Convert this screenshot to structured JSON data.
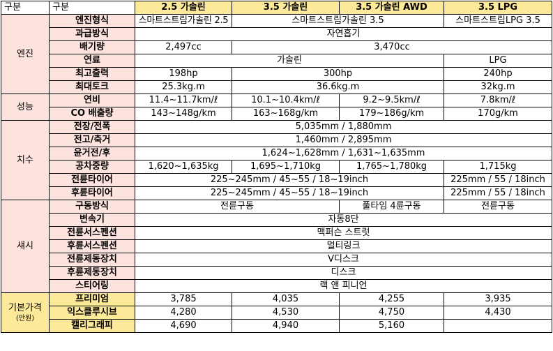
{
  "header": {
    "col1": "구분",
    "col2": "구분",
    "models": [
      "2.5 가솔린",
      "3.5 가솔린",
      "3.5 가솔린 AWD",
      "3.5 LPG"
    ]
  },
  "groups": {
    "engine": "엔진",
    "performance": "성능",
    "dimensions": "치수",
    "chassis": "섀시",
    "price": "기본가격",
    "price_unit": "(만원)"
  },
  "engine": {
    "type": {
      "label": "엔진형식",
      "v1": "스마트스트림가솔린 2.5",
      "v23": "스마트스트림가솔린 3.5",
      "v4": "스마트스트림LPG 3.5"
    },
    "intake": {
      "label": "과급방식",
      "all": "자연흡기"
    },
    "displacement": {
      "label": "배기량",
      "v1": "2,497cc",
      "v234": "3,470cc"
    },
    "fuel": {
      "label": "연료",
      "v123": "가솔린",
      "v4": "LPG"
    },
    "power": {
      "label": "최고출력",
      "v1": "198hp",
      "v23": "300hp",
      "v4": "240hp"
    },
    "torque": {
      "label": "최대토크",
      "v1": "25.3kg.m",
      "v23": "36.6kg.m",
      "v4": "32kg.m"
    }
  },
  "performance": {
    "efficiency": {
      "label": "연비",
      "v1": "11.4~11.7km/ℓ",
      "v2": "10.1~10.4km/ℓ",
      "v3": "9.2~9.5km/ℓ",
      "v4": "7.8km/ℓ"
    },
    "co2": {
      "label": "CO 배출량",
      "v1": "143~148g/km",
      "v2": "163~168g/km",
      "v3": "179~186g/km",
      "v4": "170g/km"
    }
  },
  "dimensions": {
    "length_width": {
      "label": "전장/전폭",
      "all": "5,035mm / 1,880mm"
    },
    "height_wheelbase": {
      "label": "전고/축거",
      "all": "1,460mm / 2,895mm"
    },
    "tread": {
      "label": "윤거전/후",
      "all": "1,624~1,628mm / 1,631~1,635mm"
    },
    "curb_weight": {
      "label": "공차중량",
      "v1": "1,620~1,635kg",
      "v2": "1,695~1,710kg",
      "v3": "1,765~1,780kg",
      "v4": "1,715kg"
    },
    "front_tire": {
      "label": "전륜타이어",
      "v123": "225~245mm / 45~55 / 18~19inch",
      "v4": "225mm / 55 / 18inch"
    },
    "rear_tire": {
      "label": "후륜타이어",
      "v123": "225~245mm / 45~55 / 18~19inch",
      "v4": "225mm / 55 / 18inch"
    }
  },
  "chassis": {
    "drive": {
      "label": "구동방식",
      "v12": "전륜구동",
      "v3": "풀타임 4륜구동",
      "v4": "전륜구동"
    },
    "transmission": {
      "label": "변속기",
      "all": "자동8단"
    },
    "front_suspension": {
      "label": "전륜서스펜션",
      "all": "맥퍼슨 스트럿"
    },
    "rear_suspension": {
      "label": "후륜서스펜션",
      "all": "멀티링크"
    },
    "front_brake": {
      "label": "전륜제동장치",
      "all": "V디스크"
    },
    "rear_brake": {
      "label": "후륜제동장치",
      "all": "디스크"
    },
    "steering": {
      "label": "스티어링",
      "all": "랙 앤 피니언"
    }
  },
  "price": {
    "premium": {
      "label": "프리미엄",
      "v1": "3,785",
      "v2": "4,035",
      "v3": "4,255",
      "v4": "3,935"
    },
    "exclusive": {
      "label": "익스클루시브",
      "v1": "4,280",
      "v2": "4,530",
      "v3": "4,750",
      "v4": "4,430"
    },
    "calligraphy": {
      "label": "캘리그래피",
      "v1": "4,690",
      "v2": "4,940",
      "v3": "5,160",
      "v4": ""
    }
  }
}
